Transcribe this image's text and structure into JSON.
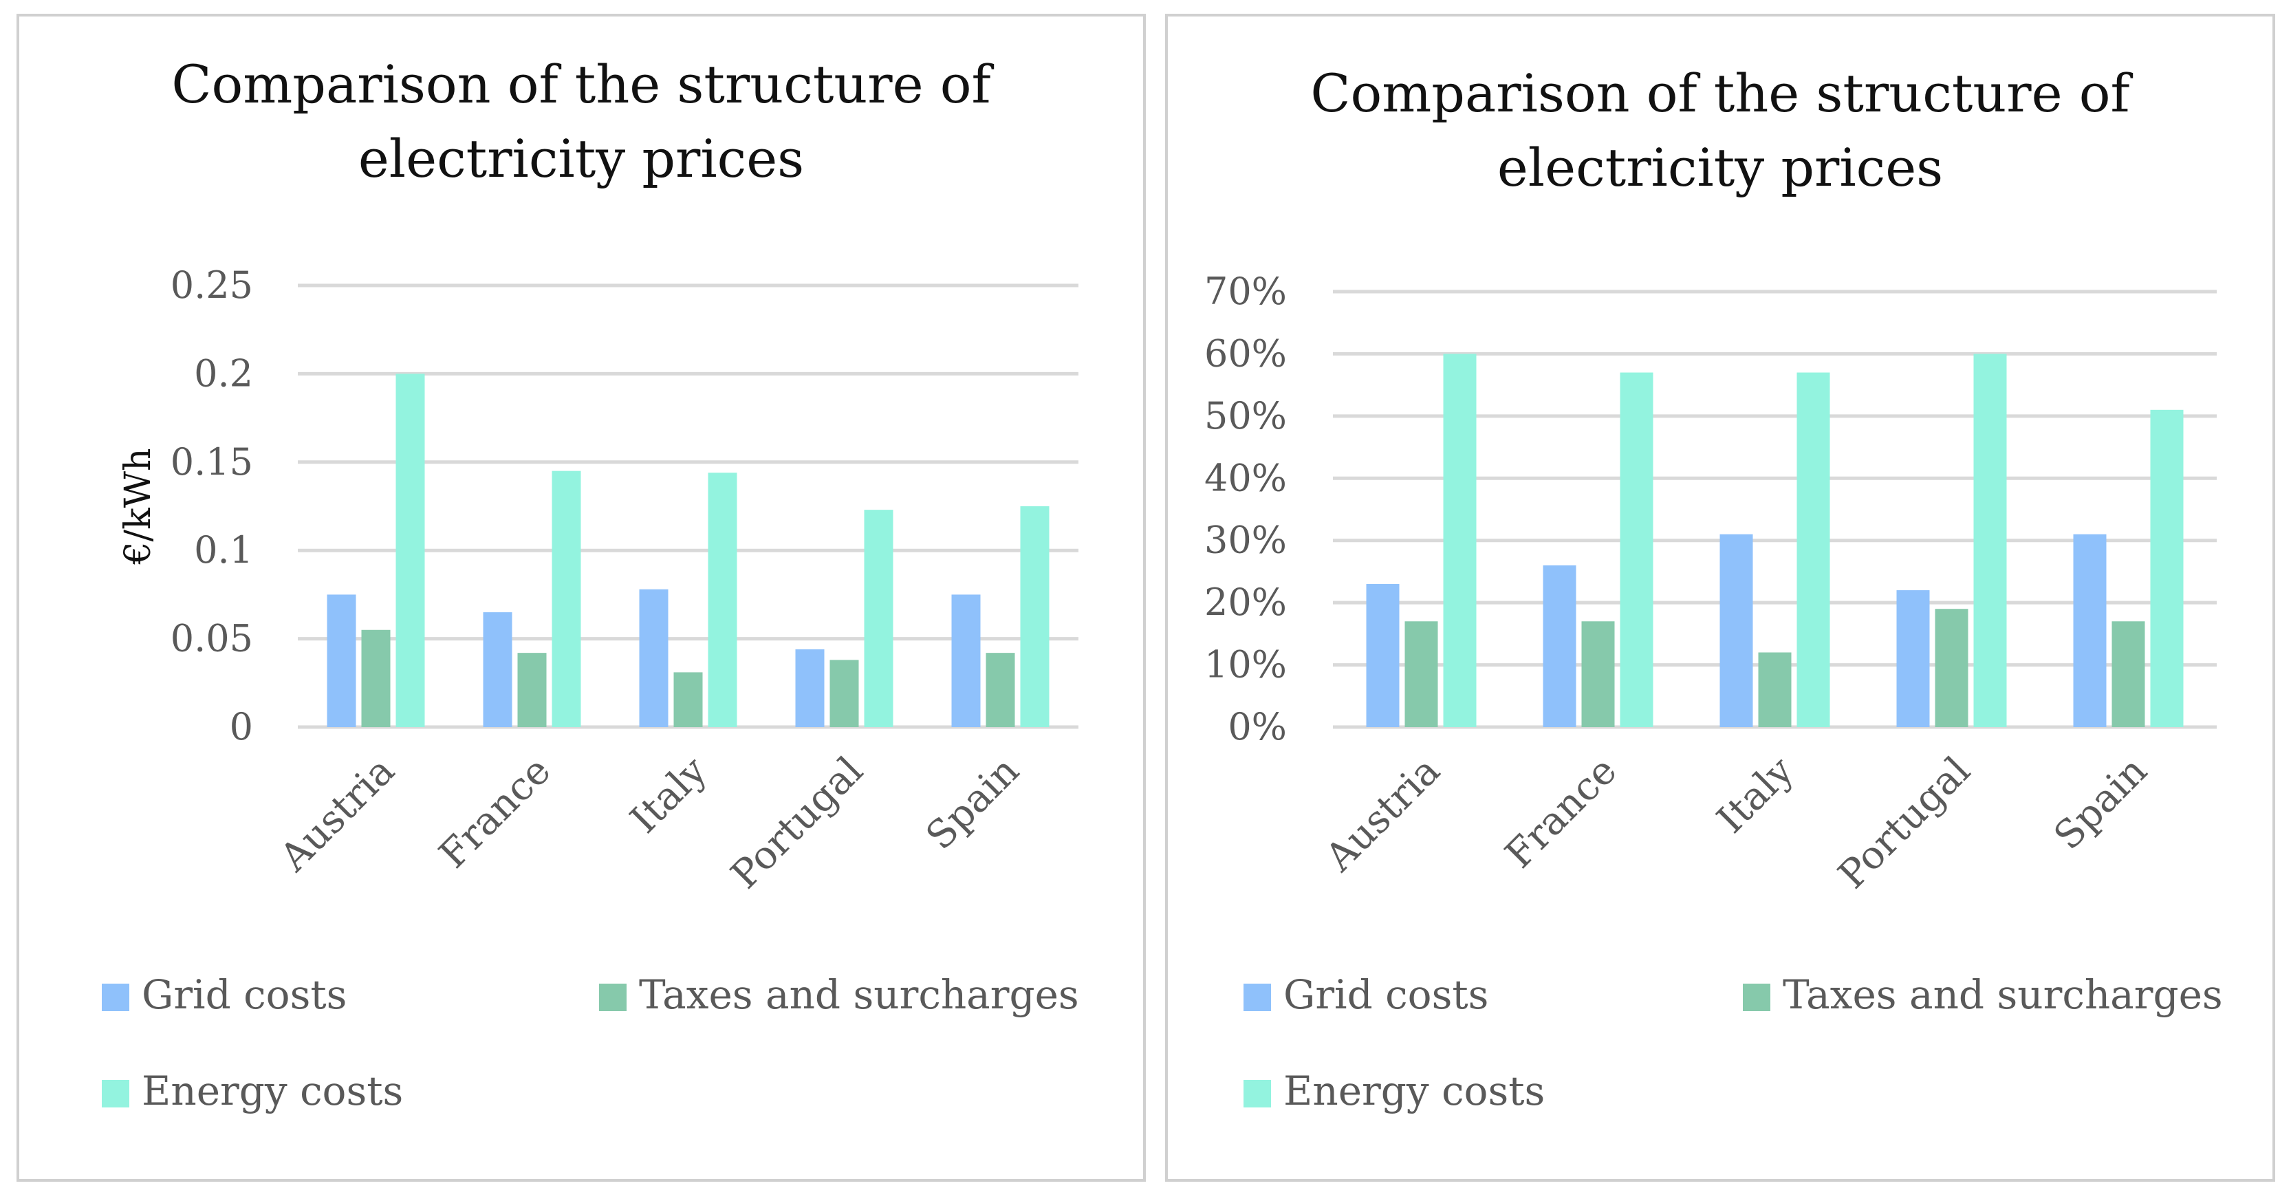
{
  "chart_data": [
    {
      "type": "bar",
      "title": "Comparison of the structure of electricity prices",
      "title_lines": [
        "Comparison of the structure of",
        "electricity prices"
      ],
      "xlabel": "",
      "ylabel": "€/kWh",
      "ylim": [
        0,
        0.25
      ],
      "yticks": [
        0,
        0.05,
        0.1,
        0.15,
        0.2,
        0.25
      ],
      "ytick_labels": [
        "0",
        "0.05",
        "0.1",
        "0.15",
        "0.2",
        "0.25"
      ],
      "grid": true,
      "legend_position": "bottom",
      "categories": [
        "Austria",
        "France",
        "Italy",
        "Portugal",
        "Spain"
      ],
      "series": [
        {
          "name": "Grid costs",
          "color": "#8fc1fb",
          "values": [
            0.075,
            0.065,
            0.078,
            0.044,
            0.075
          ]
        },
        {
          "name": "Taxes and surcharges",
          "color": "#86c9ab",
          "values": [
            0.055,
            0.042,
            0.031,
            0.038,
            0.042
          ]
        },
        {
          "name": "Energy costs",
          "color": "#93f3df",
          "values": [
            0.2,
            0.145,
            0.144,
            0.123,
            0.125
          ]
        }
      ]
    },
    {
      "type": "bar",
      "title": "Comparison of the structure of electricity prices",
      "title_lines": [
        "Comparison of the structure of",
        "electricity prices"
      ],
      "xlabel": "",
      "ylabel": "",
      "ylim": [
        0,
        70
      ],
      "yticks": [
        0,
        10,
        20,
        30,
        40,
        50,
        60,
        70
      ],
      "ytick_labels": [
        "0%",
        "10%",
        "20%",
        "30%",
        "40%",
        "50%",
        "60%",
        "70%"
      ],
      "grid": true,
      "legend_position": "bottom",
      "categories": [
        "Austria",
        "France",
        "Italy",
        "Portugal",
        "Spain"
      ],
      "series": [
        {
          "name": "Grid costs",
          "color": "#8fc1fb",
          "values": [
            23,
            26,
            31,
            22,
            31
          ]
        },
        {
          "name": "Taxes and surcharges",
          "color": "#86c9ab",
          "values": [
            17,
            17,
            12,
            19,
            17
          ]
        },
        {
          "name": "Energy costs",
          "color": "#93f3df",
          "values": [
            60,
            57,
            57,
            60,
            51
          ]
        }
      ]
    }
  ]
}
